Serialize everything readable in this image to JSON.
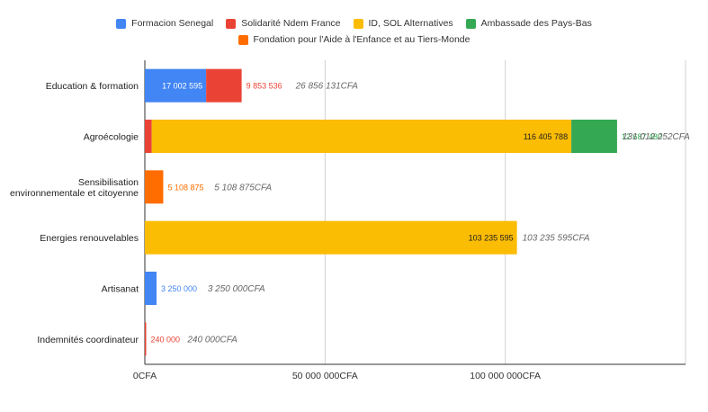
{
  "chart_data": {
    "type": "bar",
    "orientation": "horizontal",
    "stacked": true,
    "categories": [
      "Education & formation",
      "Agroécologie",
      "Sensibilisation\nenvironnementale et citoyenne",
      "Energies renouvelables",
      "Artisanat",
      "Indemnités coordinateur"
    ],
    "series": [
      {
        "name": "Formacion Senegal",
        "color": "#4285f4",
        "values": [
          17002595,
          0,
          0,
          0,
          3250000,
          0
        ],
        "labels": [
          "17 002 595",
          "",
          "",
          "",
          "3 250 000",
          ""
        ]
      },
      {
        "name": "Solidarité Ndem France",
        "color": "#ea4335",
        "values": [
          9853536,
          1918984,
          0,
          0,
          0,
          240000
        ],
        "labels": [
          "9 853 536",
          "1 918 984",
          "",
          "",
          "",
          "240 000"
        ]
      },
      {
        "name": "ID, SOL Alternatives",
        "color": "#fbbc04",
        "values": [
          0,
          116405788,
          0,
          103235595,
          0,
          0
        ],
        "labels": [
          "",
          "116 405 788",
          "",
          "103 235 595",
          "",
          ""
        ]
      },
      {
        "name": "Ambassade des Pays-Bas",
        "color": "#34a853",
        "values": [
          0,
          12687480,
          0,
          0,
          0,
          0
        ],
        "labels": [
          "",
          "12 687 480",
          "",
          "",
          "",
          ""
        ]
      },
      {
        "name": "Fondation pour l'Aide à l'Enfance et au Tiers-Monde",
        "color": "#ff6d01",
        "values": [
          0,
          0,
          5108875,
          0,
          0,
          0
        ],
        "labels": [
          "",
          "",
          "5 108 875",
          "",
          "",
          ""
        ]
      }
    ],
    "totals": [
      "26 856 131CFA",
      "131 012 252CFA",
      "5 108 875CFA",
      "103 235 595CFA",
      "3 250 000CFA",
      "240 000CFA"
    ],
    "x_ticks": [
      {
        "value": 0,
        "label": "0CFA"
      },
      {
        "value": 50000000,
        "label": "50 000 000CFA"
      },
      {
        "value": 100000000,
        "label": "100 000 000CFA"
      }
    ],
    "xlim": [
      0,
      150000000
    ],
    "grid": true,
    "legend_position": "top"
  }
}
